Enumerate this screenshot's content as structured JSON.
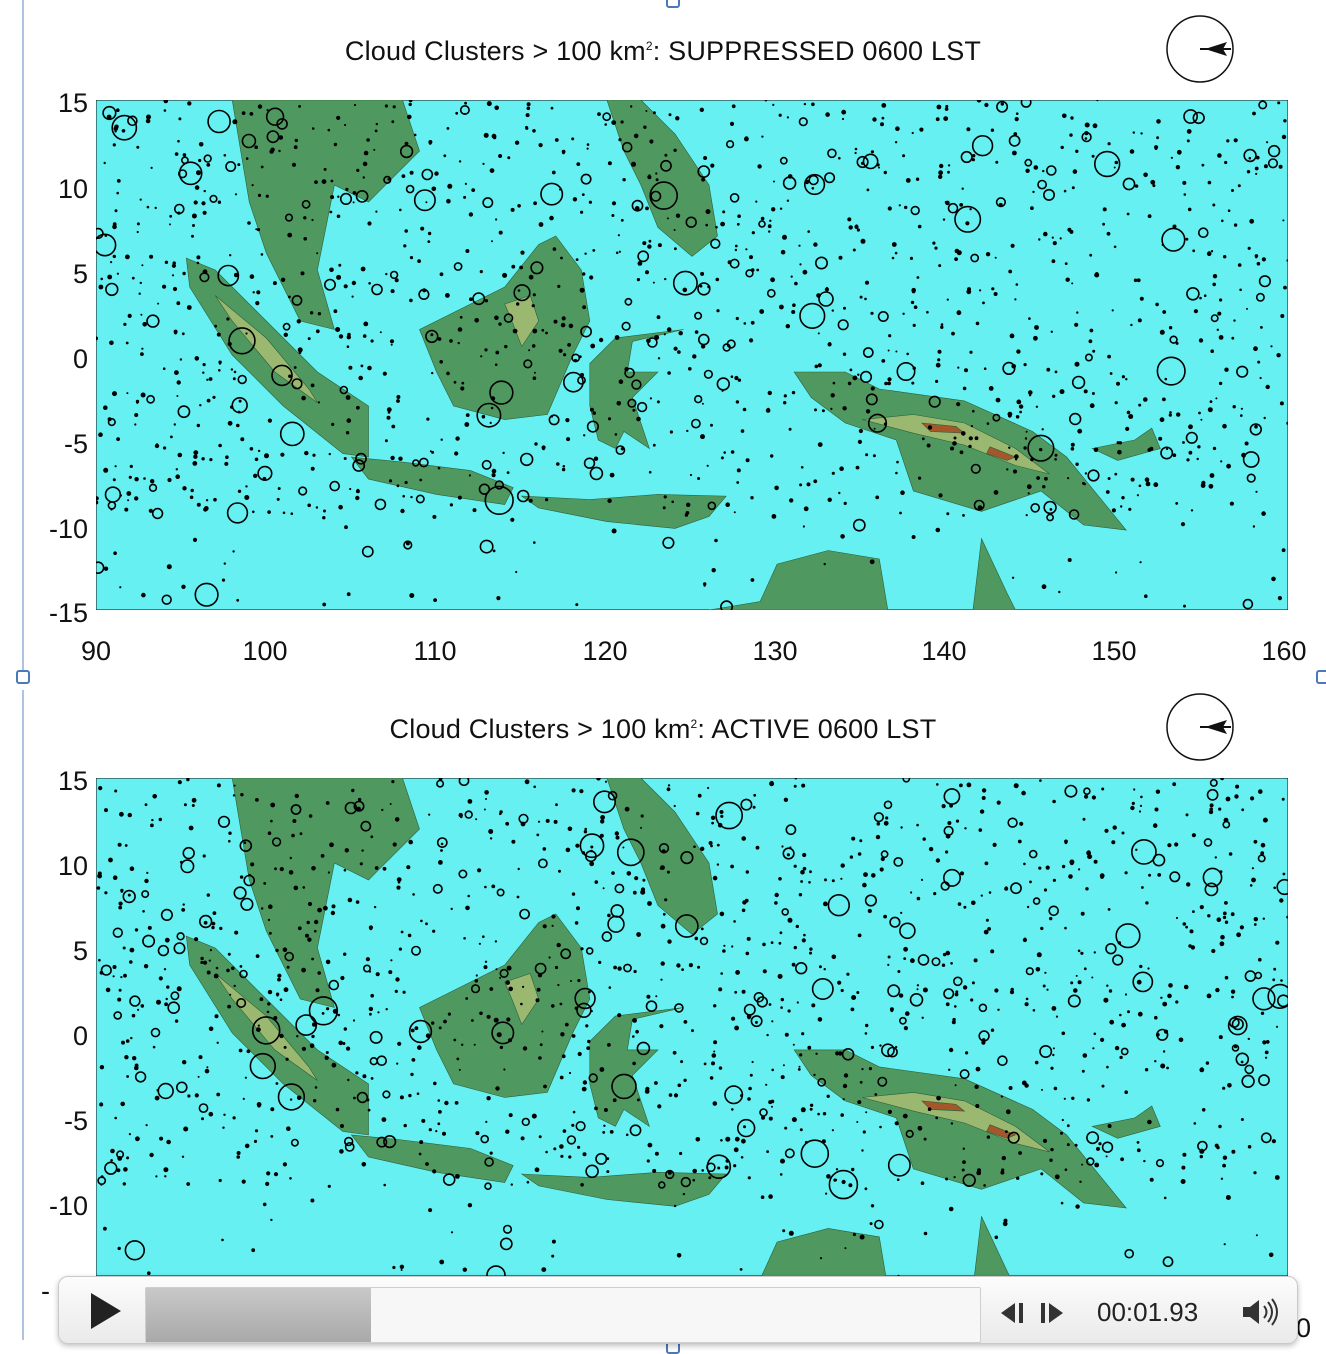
{
  "panels": [
    {
      "title_prefix": "Cloud Clusters > 100 km",
      "title_sup": "2",
      "title_suffix": ": SUPPRESSED   0600 LST",
      "yticks": [
        "15",
        "10",
        "5",
        "0",
        "-5",
        "-10",
        "-15"
      ],
      "xticks": [
        "90",
        "100",
        "110",
        "120",
        "130",
        "140",
        "150",
        "160"
      ]
    },
    {
      "title_prefix": "Cloud Clusters > 100 km",
      "title_sup": "2",
      "title_suffix": ": ACTIVE   0600 LST",
      "yticks": [
        "15",
        "10",
        "5",
        "0",
        "-5",
        "-10",
        "-"
      ]
    }
  ],
  "player": {
    "time": "00:01.93",
    "progress": 0.27
  },
  "edge_text": "0",
  "colors": {
    "ocean": "#66f0f2",
    "land": "#4f9960",
    "highland": "#9ab870",
    "mountain": "#a3572a",
    "handle": "#4a79b8"
  }
}
